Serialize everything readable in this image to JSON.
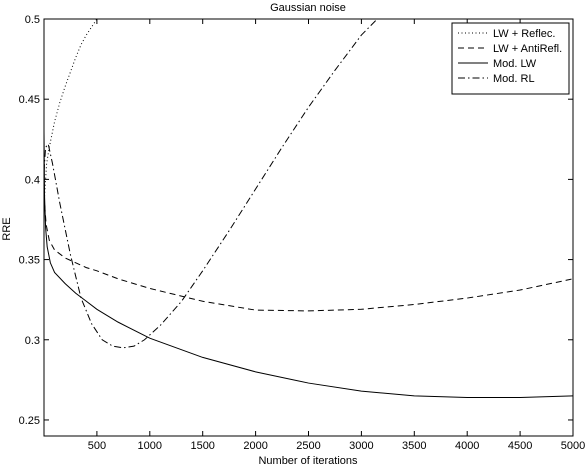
{
  "chart_data": {
    "type": "line",
    "title": "Gaussian noise",
    "xlabel": "Number of iterations",
    "ylabel": "RRE",
    "xlim": [
      0,
      5000
    ],
    "ylim": [
      0.24,
      0.5
    ],
    "xticks": [
      500,
      1000,
      1500,
      2000,
      2500,
      3000,
      3500,
      4000,
      4500,
      5000
    ],
    "yticks": [
      0.25,
      0.3,
      0.35,
      0.4,
      0.45,
      0.5
    ],
    "grid": false,
    "legend_position": "top-right",
    "series": [
      {
        "name": "LW + Reflec.",
        "style": "dotted",
        "color": "#000000",
        "x": [
          0,
          10,
          25,
          50,
          100,
          150,
          200,
          250,
          300,
          350,
          400,
          450,
          500
        ],
        "y": [
          0.383,
          0.395,
          0.41,
          0.42,
          0.436,
          0.448,
          0.458,
          0.467,
          0.476,
          0.484,
          0.49,
          0.495,
          0.5
        ]
      },
      {
        "name": "LW + AntiRefl.",
        "style": "dashed",
        "color": "#000000",
        "x": [
          0,
          20,
          50,
          100,
          200,
          300,
          400,
          500,
          700,
          1000,
          1500,
          2000,
          2500,
          3000,
          3500,
          4000,
          4500,
          5000
        ],
        "y": [
          0.39,
          0.372,
          0.362,
          0.356,
          0.351,
          0.348,
          0.345,
          0.343,
          0.338,
          0.332,
          0.324,
          0.3185,
          0.318,
          0.319,
          0.322,
          0.326,
          0.331,
          0.338
        ]
      },
      {
        "name": "Mod. LW",
        "style": "solid",
        "color": "#000000",
        "x": [
          0,
          5,
          15,
          30,
          60,
          100,
          200,
          300,
          400,
          500,
          700,
          1000,
          1500,
          2000,
          2500,
          3000,
          3500,
          4000,
          4500,
          5000
        ],
        "y": [
          0.43,
          0.39,
          0.37,
          0.358,
          0.348,
          0.342,
          0.335,
          0.329,
          0.324,
          0.319,
          0.311,
          0.301,
          0.289,
          0.28,
          0.273,
          0.268,
          0.265,
          0.264,
          0.264,
          0.265
        ]
      },
      {
        "name": "Mod. RL",
        "style": "dashdot",
        "color": "#000000",
        "x": [
          0,
          15,
          40,
          80,
          150,
          250,
          350,
          450,
          550,
          650,
          750,
          850,
          950,
          1100,
          1300,
          1500,
          1750,
          2000,
          2250,
          2500,
          2750,
          3000,
          3150
        ],
        "y": [
          0.405,
          0.42,
          0.422,
          0.41,
          0.385,
          0.353,
          0.326,
          0.31,
          0.3,
          0.296,
          0.295,
          0.296,
          0.3,
          0.309,
          0.324,
          0.343,
          0.368,
          0.394,
          0.42,
          0.445,
          0.468,
          0.49,
          0.5
        ]
      }
    ]
  }
}
